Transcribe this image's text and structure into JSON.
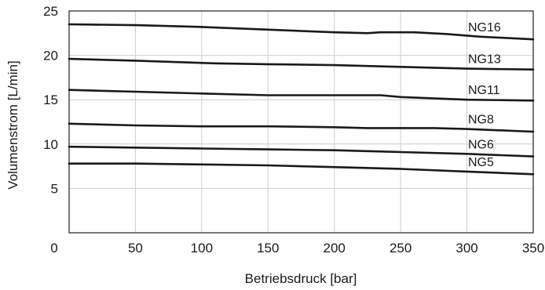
{
  "chart_data": {
    "type": "line",
    "title": "",
    "xlabel": "Betriebsdruck [bar]",
    "ylabel": "Volumenstrom [L/min]",
    "xlim": [
      0,
      350
    ],
    "ylim": [
      0,
      25
    ],
    "xticks": [
      0,
      50,
      100,
      150,
      200,
      250,
      300,
      350
    ],
    "yticks": [
      5,
      10,
      15,
      20,
      25
    ],
    "grid": true,
    "legend": "inline labels at right",
    "series": [
      {
        "name": "NG16",
        "x": [
          0,
          50,
          100,
          150,
          200,
          225,
          235,
          260,
          285,
          310,
          350
        ],
        "y": [
          23.5,
          23.4,
          23.2,
          22.9,
          22.6,
          22.5,
          22.6,
          22.6,
          22.4,
          22.1,
          21.8
        ]
      },
      {
        "name": "NG13",
        "x": [
          0,
          50,
          110,
          150,
          200,
          250,
          300,
          350
        ],
        "y": [
          19.6,
          19.4,
          19.1,
          19.0,
          18.9,
          18.7,
          18.5,
          18.4
        ]
      },
      {
        "name": "NG11",
        "x": [
          0,
          50,
          100,
          150,
          200,
          235,
          250,
          300,
          350
        ],
        "y": [
          16.1,
          15.9,
          15.7,
          15.5,
          15.5,
          15.5,
          15.3,
          15.0,
          14.9
        ]
      },
      {
        "name": "NG8",
        "x": [
          0,
          50,
          100,
          150,
          200,
          225,
          275,
          300,
          350
        ],
        "y": [
          12.3,
          12.1,
          12.0,
          12.0,
          11.9,
          11.8,
          11.8,
          11.7,
          11.4
        ]
      },
      {
        "name": "NG6",
        "x": [
          0,
          50,
          100,
          150,
          200,
          250,
          300,
          350
        ],
        "y": [
          9.7,
          9.6,
          9.5,
          9.4,
          9.3,
          9.1,
          8.9,
          8.6
        ]
      },
      {
        "name": "NG5",
        "x": [
          0,
          50,
          100,
          150,
          200,
          250,
          300,
          350
        ],
        "y": [
          7.8,
          7.8,
          7.7,
          7.6,
          7.4,
          7.2,
          6.9,
          6.6
        ]
      }
    ]
  }
}
